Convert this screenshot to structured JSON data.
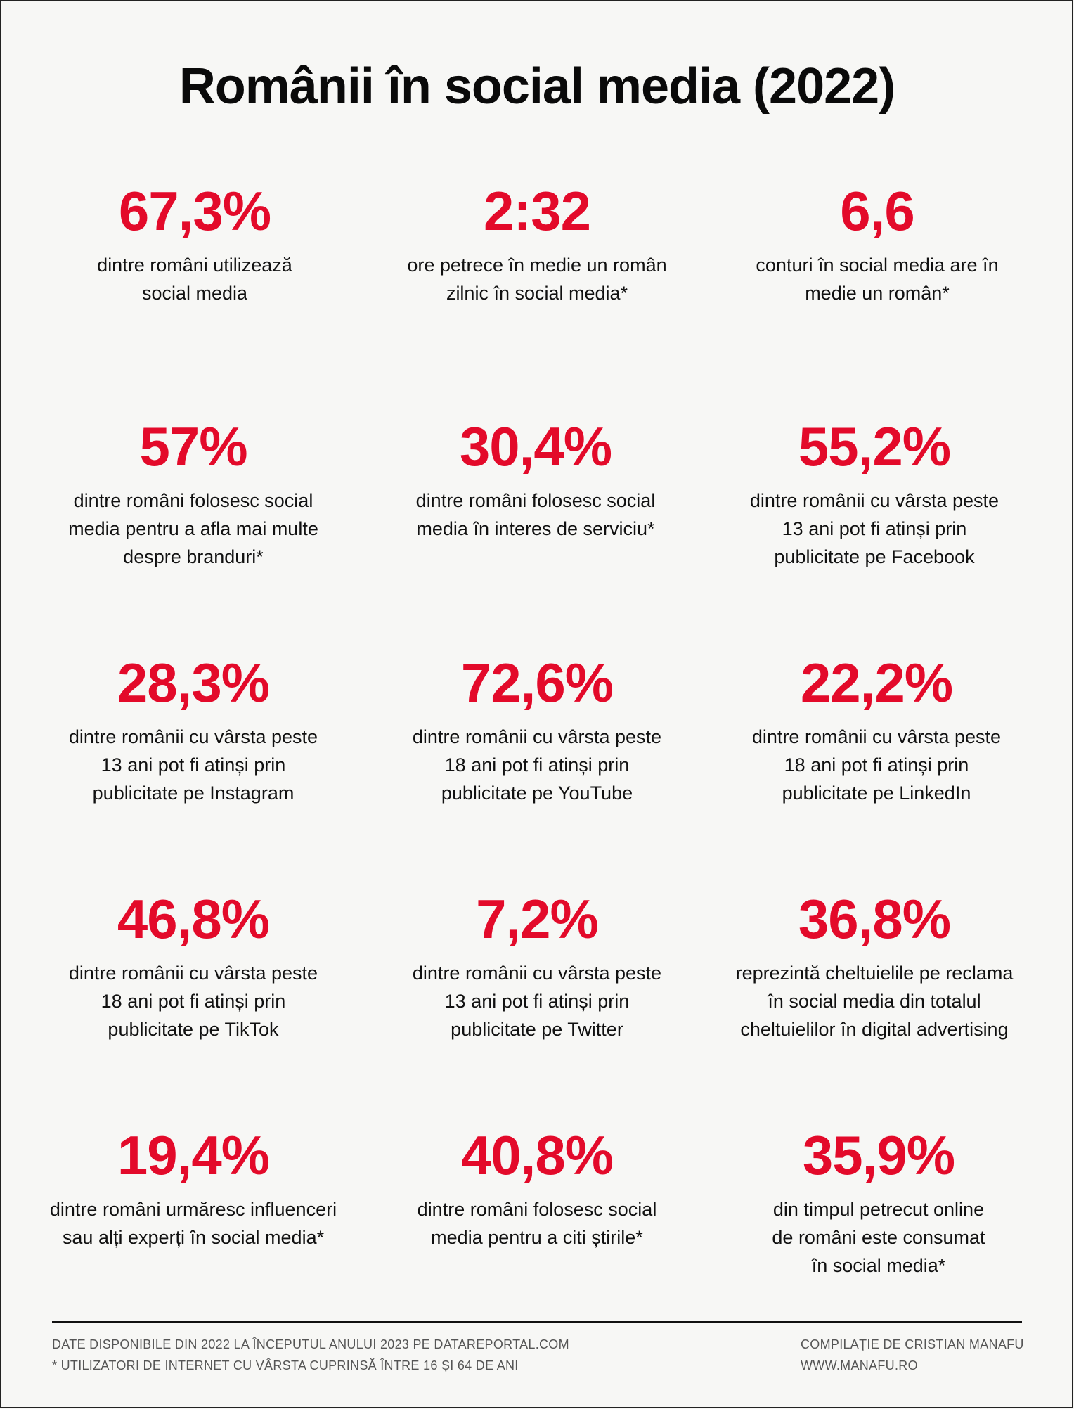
{
  "title": "Românii în social media (2022)",
  "accent_color": "#e30a2a",
  "stats": [
    {
      "value": "67,3%",
      "desc": "dintre români utilizează\nsocial media"
    },
    {
      "value": "2:32",
      "desc": "ore petrece în medie un român\nzilnic în social media*"
    },
    {
      "value": "6,6",
      "desc": "conturi în social media are în\nmedie un român*"
    },
    {
      "value": "57%",
      "desc": "dintre români folosesc social\nmedia pentru a afla mai multe\ndespre branduri*"
    },
    {
      "value": "30,4%",
      "desc": "dintre români folosesc social\nmedia în interes de serviciu*"
    },
    {
      "value": "55,2%",
      "desc": "dintre românii cu vârsta peste\n13 ani pot fi atinși prin\npublicitate pe Facebook"
    },
    {
      "value": "28,3%",
      "desc": "dintre românii cu vârsta peste\n13 ani pot fi atinși prin\npublicitate pe Instagram"
    },
    {
      "value": "72,6%",
      "desc": "dintre românii cu vârsta peste\n18 ani pot fi atinși prin\npublicitate pe YouTube"
    },
    {
      "value": "22,2%",
      "desc": "dintre românii cu vârsta peste\n18 ani pot fi atinși prin\npublicitate pe LinkedIn"
    },
    {
      "value": "46,8%",
      "desc": "dintre românii cu vârsta peste\n18 ani pot fi atinși prin\npublicitate pe TikTok"
    },
    {
      "value": "7,2%",
      "desc": "dintre românii cu vârsta peste\n13 ani pot fi atinși prin\npublicitate pe Twitter"
    },
    {
      "value": "36,8%",
      "desc": "reprezintă cheltuielile pe reclama\nîn social media din totalul\ncheltuielilor în digital advertising"
    },
    {
      "value": "19,4%",
      "desc": "dintre români urmăresc influenceri\nsau alți experți în social media*"
    },
    {
      "value": "40,8%",
      "desc": "dintre români folosesc social\nmedia pentru a citi știrile*"
    },
    {
      "value": "35,9%",
      "desc": "din timpul petrecut online\nde români este consumat\nîn social media*"
    }
  ],
  "footer": {
    "left_line1": "DATE DISPONIBILE DIN 2022 LA ÎNCEPUTUL ANULUI 2023 PE DATAREPORTAL.COM",
    "left_line2": "* UTILIZATORI DE INTERNET CU VÂRSTA CUPRINSĂ ÎNTRE 16 ȘI 64 DE ANI",
    "right_line1": "COMPILAȚIE DE CRISTIAN MANAFU",
    "right_line2": "WWW.MANAFU.RO"
  }
}
